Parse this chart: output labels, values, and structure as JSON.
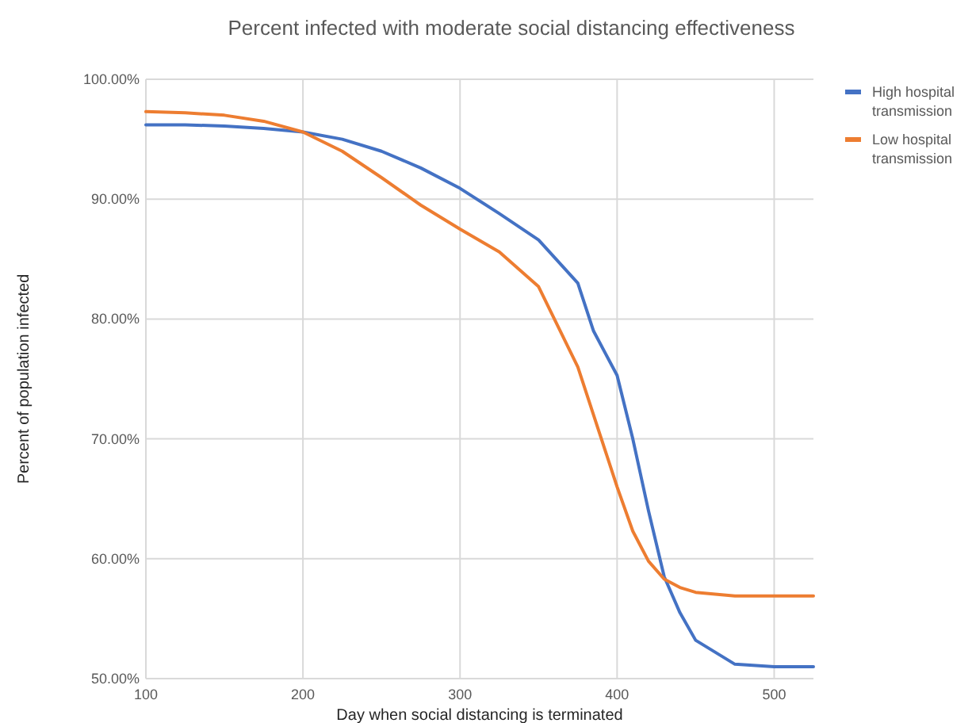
{
  "chart_data": {
    "type": "line",
    "title": "Percent infected with moderate social distancing effectiveness",
    "xlabel": "Day when social distancing is terminated",
    "ylabel": "Percent of population infected",
    "xlim": [
      100,
      525
    ],
    "xticks": [
      100,
      200,
      300,
      400,
      500
    ],
    "ylim": [
      50,
      100
    ],
    "yticks": [
      {
        "value": 50,
        "label": "50.00%"
      },
      {
        "value": 60,
        "label": "60.00%"
      },
      {
        "value": 70,
        "label": "70.00%"
      },
      {
        "value": 80,
        "label": "80.00%"
      },
      {
        "value": 90,
        "label": "90.00%"
      },
      {
        "value": 100,
        "label": "100.00%"
      }
    ],
    "grid": true,
    "legend": "top right",
    "marker": "none",
    "line_style": "solid",
    "series": [
      {
        "name": "High hospital transmission",
        "color": "#4472c4",
        "x": [
          100,
          125,
          150,
          175,
          200,
          225,
          250,
          275,
          300,
          325,
          350,
          375,
          385,
          400,
          410,
          420,
          430,
          440,
          450,
          475,
          500,
          525
        ],
        "values": [
          96.2,
          96.2,
          96.1,
          95.9,
          95.6,
          95.0,
          94.0,
          92.6,
          90.9,
          88.8,
          86.6,
          83.0,
          79.0,
          75.3,
          70.0,
          64.0,
          58.5,
          55.5,
          53.2,
          51.2,
          51.0,
          51.0
        ]
      },
      {
        "name": "Low hospital transmission",
        "color": "#ed7d31",
        "x": [
          100,
          125,
          150,
          175,
          200,
          225,
          250,
          275,
          300,
          325,
          350,
          375,
          390,
          400,
          410,
          420,
          430,
          440,
          450,
          475,
          500,
          525
        ],
        "values": [
          97.3,
          97.2,
          97.0,
          96.5,
          95.6,
          94.0,
          91.8,
          89.5,
          87.5,
          85.6,
          82.7,
          76.0,
          70.0,
          66.0,
          62.3,
          59.8,
          58.3,
          57.6,
          57.2,
          56.9,
          56.9,
          56.9
        ]
      }
    ]
  }
}
